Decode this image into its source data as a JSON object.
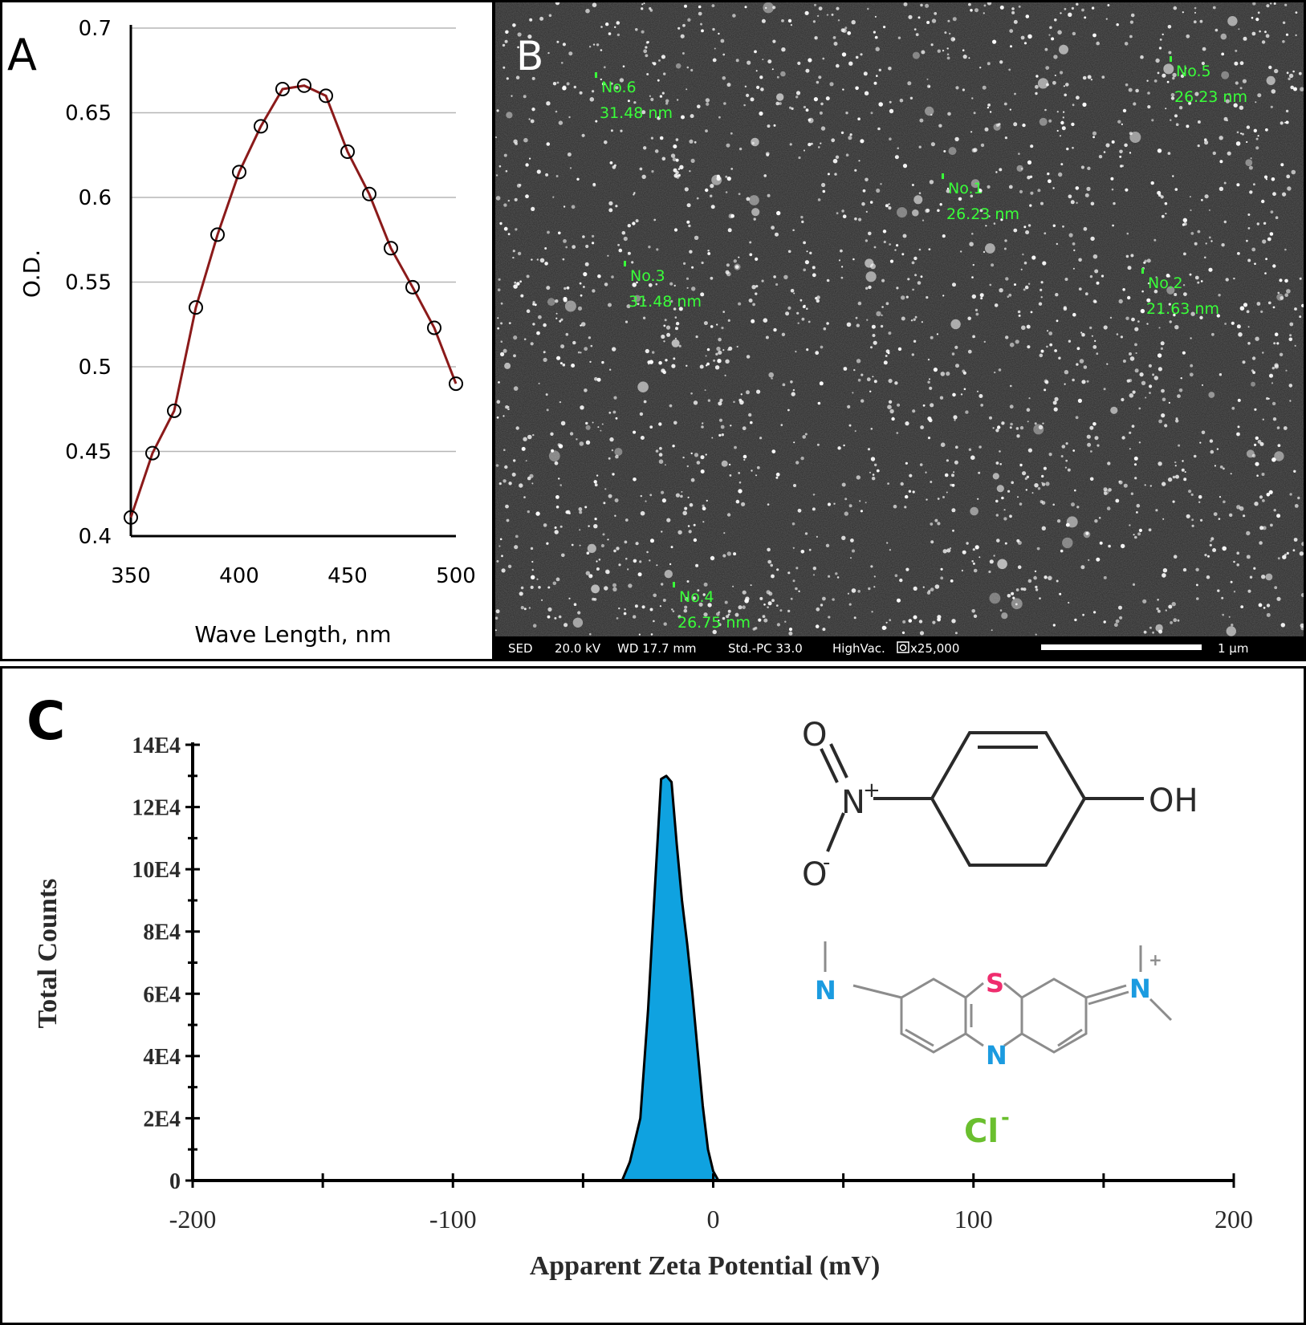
{
  "panel_a": {
    "letter": "A",
    "chart_data": {
      "type": "line",
      "title": "",
      "xlabel": "Wave Length, nm",
      "ylabel": "O.D.",
      "xlim": [
        350,
        500
      ],
      "ylim": [
        0.4,
        0.7
      ],
      "xticks": [
        "350",
        "400",
        "450",
        "500"
      ],
      "yticks": [
        "0.4",
        "0.45",
        "0.5",
        "0.55",
        "0.6",
        "0.65",
        "0.7"
      ],
      "grid": true,
      "x": [
        350,
        360,
        370,
        380,
        390,
        400,
        410,
        420,
        430,
        440,
        450,
        460,
        470,
        480,
        490,
        500
      ],
      "y": [
        0.411,
        0.449,
        0.474,
        0.535,
        0.578,
        0.615,
        0.642,
        0.664,
        0.666,
        0.66,
        0.627,
        0.602,
        0.57,
        0.547,
        0.523,
        0.49
      ],
      "line_color": "#8b1a1a",
      "marker_color": "#000000"
    }
  },
  "panel_b": {
    "letter": "B",
    "annotations": [
      {
        "label": "No.6",
        "size": "31.48 nm"
      },
      {
        "label": "No.5",
        "size": "26.23 nm"
      },
      {
        "label": "No.1",
        "size": "26.23 nm"
      },
      {
        "label": "No.3",
        "size": "31.48 nm"
      },
      {
        "label": "No.2",
        "size": "21.63 nm"
      },
      {
        "label": "No.4",
        "size": "26.75 nm"
      }
    ],
    "annotation_color": "#39ff39",
    "footer": {
      "mode": "SED",
      "voltage": "20.0 kV",
      "wd": "WD 17.7 mm",
      "std": "Std.-PC 33.0",
      "vac": "HighVac.",
      "mag": "x25,000",
      "scale": "1 μm"
    }
  },
  "panel_c": {
    "letter": "C",
    "chart_data": {
      "type": "area",
      "title": "",
      "xlabel": "Apparent Zeta Potential (mV)",
      "ylabel": "Total Counts",
      "xlim": [
        -200,
        200
      ],
      "ylim": [
        0,
        140000
      ],
      "xticks": [
        "-200",
        "-100",
        "0",
        "100",
        "200"
      ],
      "yticks": [
        "0",
        "2E4",
        "4E4",
        "6E4",
        "8E4",
        "10E4",
        "12E4",
        "14E4"
      ],
      "grid": false,
      "x": [
        -200,
        -35,
        -32,
        -28,
        -25,
        -22,
        -20,
        -18,
        -16,
        -14,
        -12,
        -10,
        -8,
        -6,
        -4,
        -2,
        0,
        2,
        200
      ],
      "y": [
        0,
        0,
        6000,
        20000,
        55000,
        100000,
        129000,
        130000,
        128000,
        108000,
        90000,
        76000,
        60000,
        42000,
        24000,
        10000,
        3000,
        0,
        0
      ],
      "fill_color": "#0fa2e0"
    },
    "molecule_1": {
      "o_top": "O",
      "n_plus": "N",
      "plus": "+",
      "o_minus": "O",
      "minus": "-",
      "oh": "OH"
    },
    "molecule_2": {
      "n_left": "N",
      "s": "S",
      "n_center": "N",
      "n_right": "N",
      "plus": "+",
      "cl": "Cl",
      "minus": "-",
      "n_color": "#1b9be0",
      "s_color": "#ef2d6e",
      "cl_color": "#6abf2e"
    }
  }
}
